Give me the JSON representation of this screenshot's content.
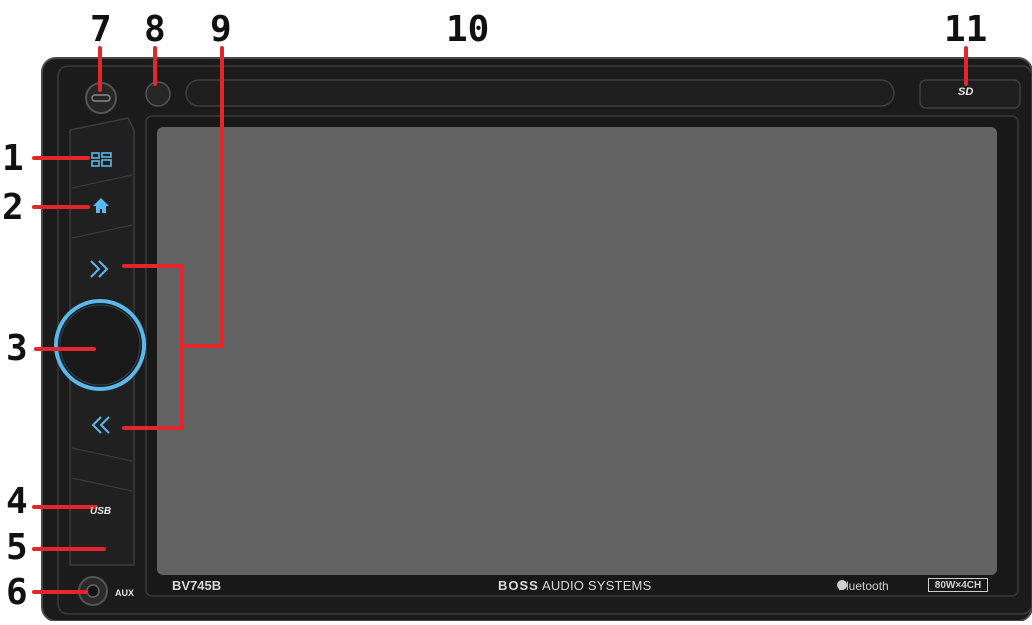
{
  "callouts": [
    "1",
    "2",
    "3",
    "4",
    "5",
    "6",
    "7",
    "8",
    "9",
    "10",
    "11"
  ],
  "panel_labels": {
    "model": "BV745B",
    "brand_bold": "BOSS",
    "brand_rest": "AUDIO SYSTEMS",
    "bluetooth": "Bluetooth",
    "power": "80W×4CH",
    "usb": "USB",
    "aux": "AUX",
    "sd": "SD"
  },
  "colors": {
    "panel": "#1b1b1b",
    "screen": "#626262",
    "accent_blue": "#5ab8ec",
    "callout_red": "#e3262b"
  }
}
